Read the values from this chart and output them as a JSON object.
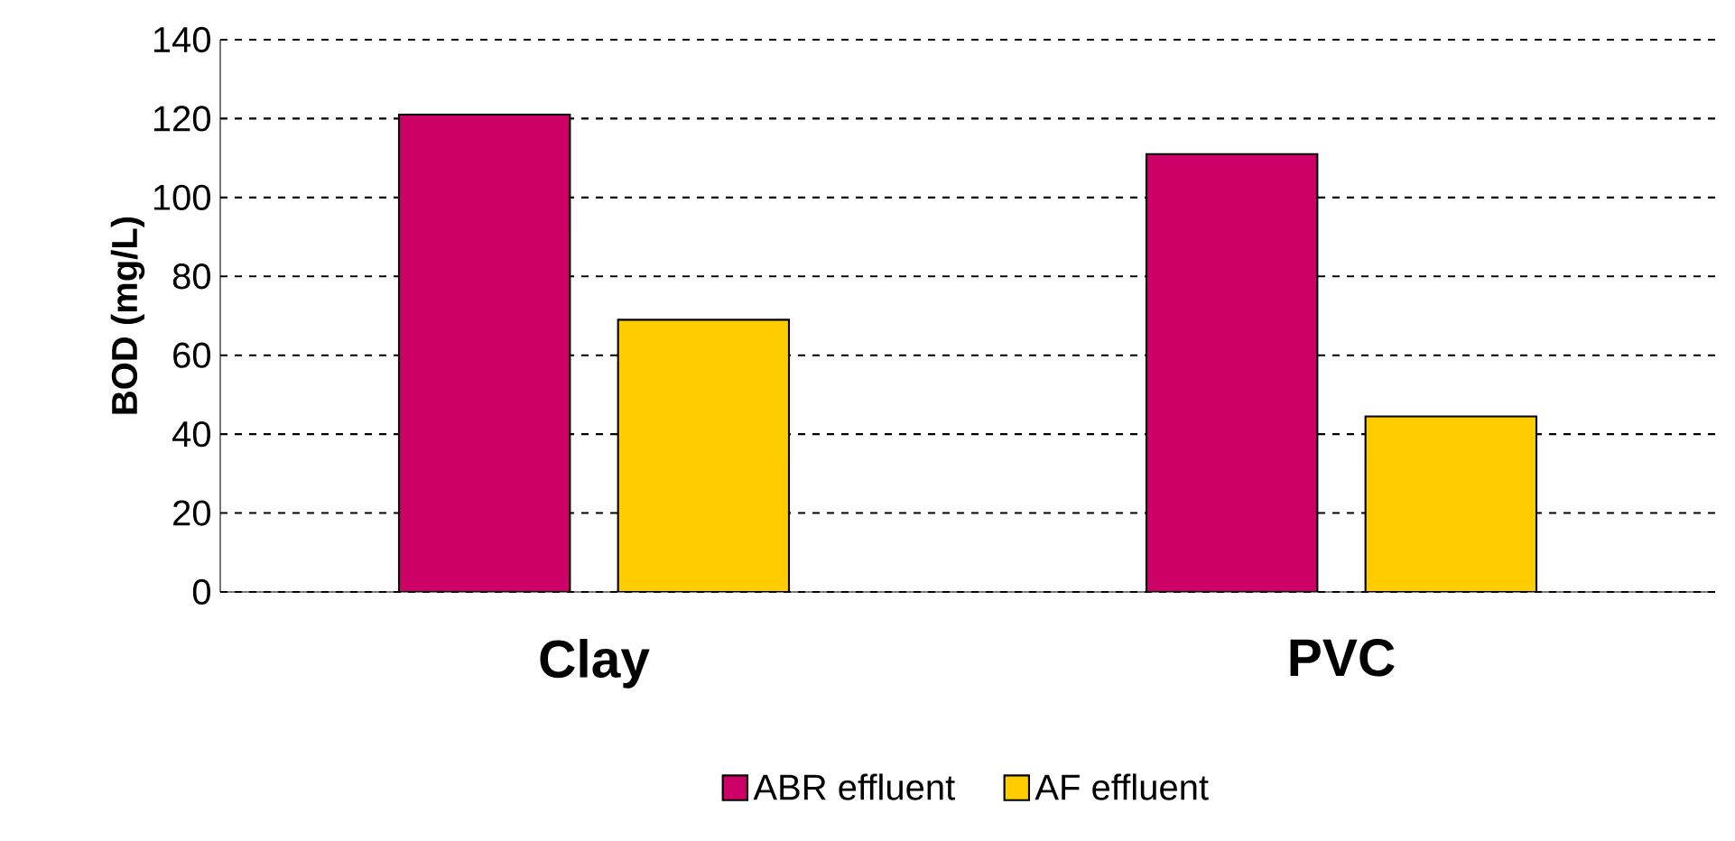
{
  "chart_data": {
    "type": "bar",
    "ylabel": "BOD (mg/L)",
    "categories": [
      "Clay",
      "PVC"
    ],
    "series": [
      {
        "name": "ABR effluent",
        "color": "#cc0066",
        "values": [
          121,
          111
        ]
      },
      {
        "name": "AF effluent",
        "color": "#ffcc00",
        "values": [
          69,
          44.5
        ]
      }
    ],
    "ylim": [
      0,
      140
    ],
    "yticks": [
      0,
      20,
      40,
      60,
      80,
      100,
      120,
      140
    ],
    "grid": "y",
    "legend": "bottom"
  }
}
